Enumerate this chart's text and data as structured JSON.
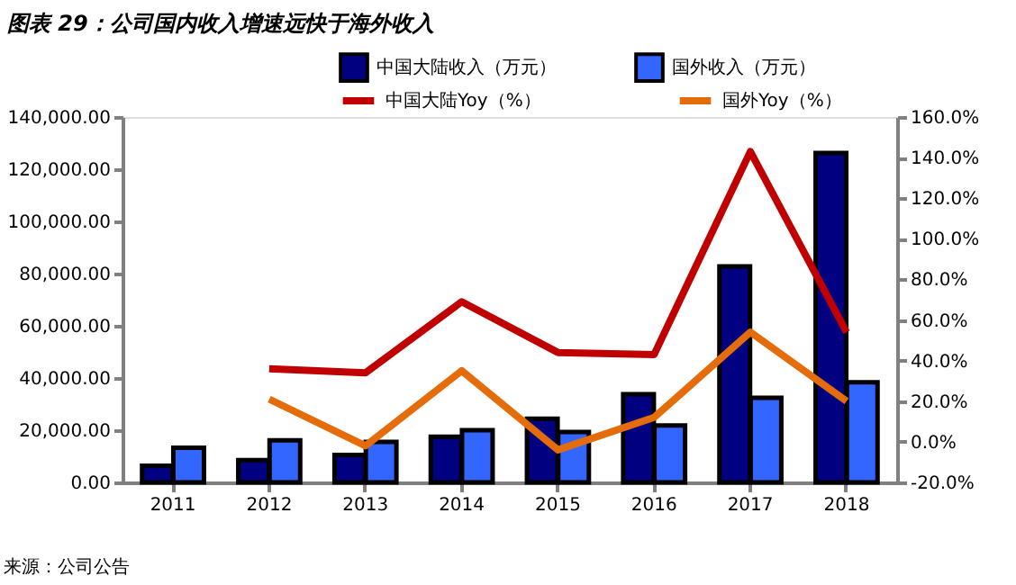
{
  "chart_data": {
    "type": "bar",
    "title": "图表 29：公司国内收入增速远快于海外收入",
    "annotations": [
      "来源：公司公告"
    ],
    "categories": [
      "2011",
      "2012",
      "2013",
      "2014",
      "2015",
      "2016",
      "2017",
      "2018"
    ],
    "series": [
      {
        "name": "中国大陆收入（万元）",
        "color": "#000080",
        "values": [
          6400,
          8500,
          10500,
          17500,
          24400,
          33800,
          82800,
          126200
        ]
      },
      {
        "name": "国外收入（万元）",
        "color": "#3366ff",
        "values": [
          13300,
          16100,
          15500,
          20000,
          19300,
          21800,
          32400,
          38400
        ]
      },
      {
        "name": "中国大陆Yoy（%）",
        "type": "line",
        "axis": "y2",
        "color": "#c00000",
        "values": [
          null,
          36,
          34,
          69,
          44,
          43,
          143,
          54
        ]
      },
      {
        "name": "国外Yoy（%）",
        "type": "line",
        "axis": "y2",
        "color": "#e46c0a",
        "values": [
          null,
          21,
          -2,
          35,
          -4,
          12,
          54,
          20
        ]
      }
    ],
    "ylim": [
      0,
      140000
    ],
    "yticks": [
      {
        "value": 0,
        "label": "0.00"
      },
      {
        "value": 20000,
        "label": "20,000.00"
      },
      {
        "value": 40000,
        "label": "40,000.00"
      },
      {
        "value": 60000,
        "label": "60,000.00"
      },
      {
        "value": 80000,
        "label": "80,000.00"
      },
      {
        "value": 100000,
        "label": "100,000.00"
      },
      {
        "value": 120000,
        "label": "120,000.00"
      },
      {
        "value": 140000,
        "label": "140,000.00"
      }
    ],
    "y2lim": [
      -20,
      160
    ],
    "y2ticks": [
      {
        "value": -20,
        "label": "-20.0%"
      },
      {
        "value": 0,
        "label": "0.0%"
      },
      {
        "value": 20,
        "label": "20.0%"
      },
      {
        "value": 40,
        "label": "40.0%"
      },
      {
        "value": 60,
        "label": "60.0%"
      },
      {
        "value": 80,
        "label": "80.0%"
      },
      {
        "value": 100,
        "label": "100.0%"
      },
      {
        "value": 120,
        "label": "120.0%"
      },
      {
        "value": 140,
        "label": "140.0%"
      },
      {
        "value": 160,
        "label": "160.0%"
      }
    ],
    "grid": false,
    "legend": "top"
  }
}
